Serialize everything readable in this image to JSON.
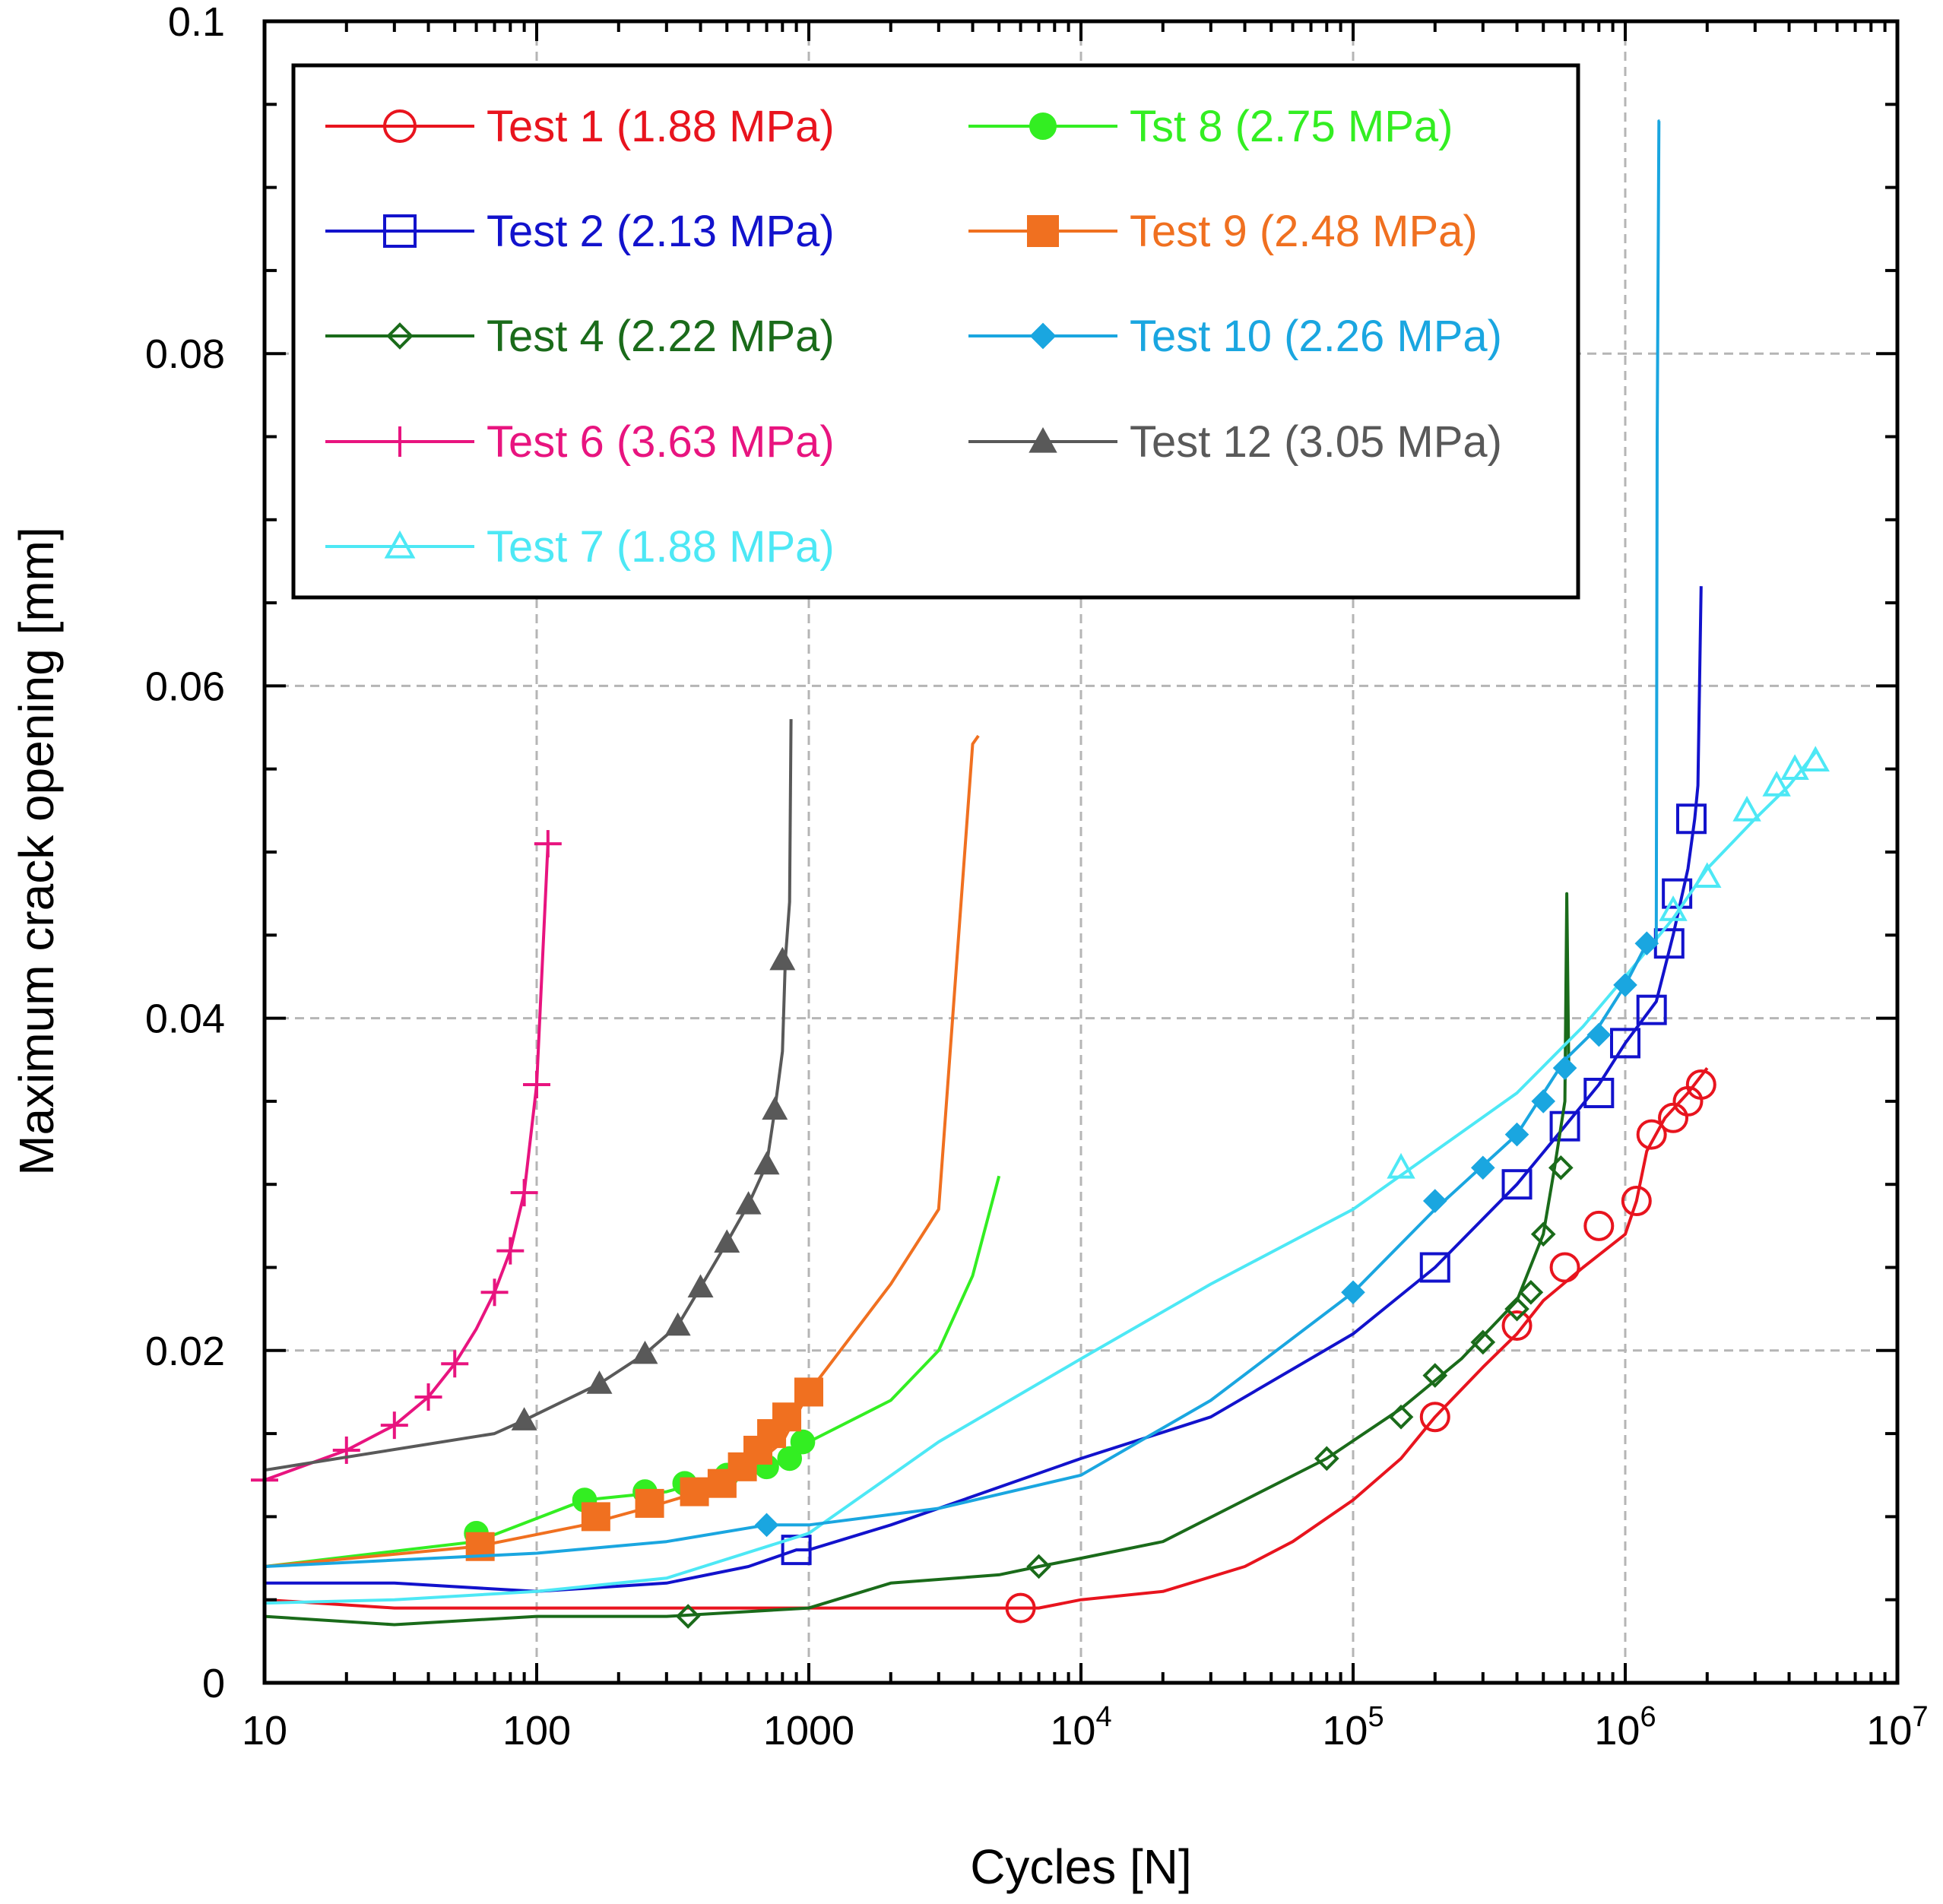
{
  "chart_data": {
    "type": "line",
    "xscale": "log",
    "xlim": [
      10,
      10000000
    ],
    "ylim": [
      0,
      0.1
    ],
    "xlabel": "Cycles [N]",
    "ylabel": "Maximum crack opening [mm]",
    "grid": true,
    "legend_position": "top-left",
    "x_ticks": [
      {
        "value": 10,
        "label": "10",
        "sup": ""
      },
      {
        "value": 100,
        "label": "100",
        "sup": ""
      },
      {
        "value": 1000,
        "label": "1000",
        "sup": ""
      },
      {
        "value": 10000,
        "label": "10",
        "sup": "4"
      },
      {
        "value": 100000,
        "label": "10",
        "sup": "5"
      },
      {
        "value": 1000000,
        "label": "10",
        "sup": "6"
      },
      {
        "value": 10000000,
        "label": "10",
        "sup": "7"
      }
    ],
    "y_ticks": [
      {
        "value": 0,
        "label": "0"
      },
      {
        "value": 0.02,
        "label": "0.02"
      },
      {
        "value": 0.04,
        "label": "0.04"
      },
      {
        "value": 0.06,
        "label": "0.06"
      },
      {
        "value": 0.08,
        "label": "0.08"
      },
      {
        "value": 0.1,
        "label": "0.1"
      }
    ],
    "series": [
      {
        "name": "Test 1 (1.88 MPa)",
        "color": "#e8141e",
        "marker": "circle-open",
        "x": [
          10,
          30,
          100,
          300,
          1000,
          3000,
          6000,
          7000,
          10000,
          20000,
          40000,
          60000,
          100000,
          150000,
          200000,
          300000,
          400000,
          500000,
          700000,
          1000000,
          1100000,
          1200000,
          1400000,
          1700000,
          2000000
        ],
        "y": [
          0.005,
          0.0045,
          0.0045,
          0.0045,
          0.0045,
          0.0045,
          0.0045,
          0.0045,
          0.005,
          0.0055,
          0.007,
          0.0085,
          0.011,
          0.0135,
          0.016,
          0.019,
          0.021,
          0.023,
          0.025,
          0.027,
          0.029,
          0.032,
          0.034,
          0.0355,
          0.037
        ],
        "markers_x": [
          6000,
          200000,
          400000,
          600000,
          800000,
          1100000,
          1250000,
          1500000,
          1700000,
          1900000
        ],
        "markers_y": [
          0.0045,
          0.016,
          0.0215,
          0.025,
          0.0275,
          0.029,
          0.033,
          0.034,
          0.035,
          0.036
        ]
      },
      {
        "name": "Test 2 (2.13 MPa)",
        "color": "#1212cc",
        "marker": "square-open",
        "x": [
          10,
          30,
          100,
          300,
          600,
          900,
          1000,
          2000,
          3000,
          10000,
          30000,
          100000,
          200000,
          400000,
          600000,
          800000,
          1000000,
          1300000,
          1500000,
          1700000,
          1800000,
          1850000,
          1900000
        ],
        "y": [
          0.006,
          0.006,
          0.0055,
          0.006,
          0.007,
          0.008,
          0.008,
          0.0095,
          0.0105,
          0.0135,
          0.016,
          0.021,
          0.025,
          0.03,
          0.0335,
          0.036,
          0.0385,
          0.041,
          0.045,
          0.049,
          0.052,
          0.054,
          0.066
        ],
        "markers_x": [
          900,
          200000,
          400000,
          600000,
          800000,
          1000000,
          1250000,
          1450000,
          1550000,
          1750000
        ],
        "markers_y": [
          0.008,
          0.025,
          0.03,
          0.0335,
          0.0355,
          0.0385,
          0.0405,
          0.0445,
          0.0475,
          0.052
        ]
      },
      {
        "name": "Test 4 (2.22 MPa)",
        "color": "#1a6b1a",
        "marker": "diamond-open",
        "x": [
          10,
          30,
          100,
          300,
          1000,
          2000,
          5000,
          7000,
          10000,
          20000,
          40000,
          80000,
          150000,
          250000,
          400000,
          500000,
          550000,
          600000,
          610000,
          620000
        ],
        "y": [
          0.004,
          0.0035,
          0.004,
          0.004,
          0.0045,
          0.006,
          0.0065,
          0.007,
          0.0075,
          0.0085,
          0.011,
          0.0135,
          0.0165,
          0.0195,
          0.023,
          0.027,
          0.031,
          0.035,
          0.0475,
          0.037
        ],
        "markers_x": [
          360,
          7000,
          80000,
          150000,
          200000,
          300000,
          400000,
          450000,
          500000,
          580000
        ],
        "markers_y": [
          0.004,
          0.007,
          0.0135,
          0.016,
          0.0185,
          0.0205,
          0.0225,
          0.0235,
          0.027,
          0.031
        ]
      },
      {
        "name": "Test 6 (3.63 MPa)",
        "color": "#e8147f",
        "marker": "plus",
        "x": [
          10,
          20,
          30,
          40,
          50,
          60,
          70,
          80,
          90,
          100,
          110
        ],
        "y": [
          0.0122,
          0.014,
          0.0155,
          0.0172,
          0.0192,
          0.0213,
          0.0235,
          0.026,
          0.0295,
          0.036,
          0.0505
        ],
        "markers_x": [
          10,
          20,
          30,
          40,
          50,
          70,
          80,
          90,
          100,
          110
        ],
        "markers_y": [
          0.0122,
          0.014,
          0.0155,
          0.0172,
          0.0192,
          0.0235,
          0.026,
          0.0295,
          0.036,
          0.0505
        ]
      },
      {
        "name": "Test 7 (1.88 MPa)",
        "color": "#4de8f5",
        "marker": "triangle-open",
        "x": [
          10,
          30,
          100,
          300,
          1000,
          3000,
          10000,
          30000,
          100000,
          200000,
          400000,
          700000,
          1000000,
          1500000,
          2000000,
          3000000,
          4000000,
          5000000
        ],
        "y": [
          0.0048,
          0.005,
          0.0055,
          0.0063,
          0.009,
          0.0145,
          0.0195,
          0.024,
          0.0285,
          0.032,
          0.0355,
          0.0395,
          0.0425,
          0.046,
          0.049,
          0.052,
          0.054,
          0.056
        ],
        "markers_x": [
          150000,
          1500000,
          2000000,
          2800000,
          3600000,
          4200000,
          5000000
        ],
        "markers_y": [
          0.031,
          0.0465,
          0.0485,
          0.0525,
          0.054,
          0.055,
          0.0555
        ]
      },
      {
        "name": "Tst 8 (2.75 MPa)",
        "color": "#33ee22",
        "marker": "circle-filled",
        "x": [
          10,
          60,
          150,
          300,
          500,
          700,
          900,
          1000,
          2000,
          3000,
          4000,
          5000
        ],
        "y": [
          0.007,
          0.0085,
          0.011,
          0.0115,
          0.0125,
          0.013,
          0.0135,
          0.0145,
          0.017,
          0.02,
          0.0245,
          0.0305
        ],
        "markers_x": [
          60,
          150,
          250,
          350,
          500,
          700,
          850,
          950
        ],
        "markers_y": [
          0.009,
          0.011,
          0.0115,
          0.012,
          0.0125,
          0.013,
          0.0135,
          0.0145
        ]
      },
      {
        "name": "Test 9 (2.48 MPa)",
        "color": "#f07020",
        "marker": "square-filled",
        "x": [
          10,
          60,
          150,
          250,
          400,
          600,
          800,
          1000,
          2000,
          3000,
          4000,
          4200
        ],
        "y": [
          0.007,
          0.0082,
          0.0095,
          0.0105,
          0.0115,
          0.0128,
          0.0145,
          0.0175,
          0.024,
          0.0285,
          0.0565,
          0.057
        ],
        "markers_x": [
          62,
          165,
          260,
          380,
          480,
          570,
          650,
          730,
          830,
          1000
        ],
        "markers_y": [
          0.0082,
          0.01,
          0.0108,
          0.0115,
          0.012,
          0.013,
          0.014,
          0.015,
          0.016,
          0.0175
        ]
      },
      {
        "name": "Test 10 (2.26 MPa)",
        "color": "#1aa6e0",
        "marker": "diamond-filled",
        "x": [
          10,
          100,
          300,
          700,
          1000,
          3000,
          10000,
          30000,
          100000,
          200000,
          400000,
          600000,
          800000,
          1000000,
          1200000,
          1300000,
          1310000,
          1330000,
          1340000
        ],
        "y": [
          0.007,
          0.0078,
          0.0085,
          0.0095,
          0.0095,
          0.0105,
          0.0125,
          0.017,
          0.0235,
          0.0285,
          0.033,
          0.0375,
          0.0395,
          0.042,
          0.0445,
          0.0445,
          0.075,
          0.094,
          0.094
        ],
        "markers_x": [
          700,
          100000,
          200000,
          300000,
          400000,
          500000,
          600000,
          800000,
          1000000,
          1200000
        ],
        "markers_y": [
          0.0095,
          0.0235,
          0.029,
          0.031,
          0.033,
          0.035,
          0.037,
          0.039,
          0.042,
          0.0445
        ]
      },
      {
        "name": "Test 12 (3.05 MPa)",
        "color": "#595959",
        "marker": "triangle-filled",
        "x": [
          10,
          70,
          90,
          120,
          170,
          250,
          330,
          400,
          500,
          600,
          700,
          750,
          800,
          820,
          850,
          860
        ],
        "y": [
          0.0128,
          0.015,
          0.0158,
          0.0168,
          0.018,
          0.0198,
          0.0215,
          0.0238,
          0.0265,
          0.0288,
          0.0312,
          0.0345,
          0.038,
          0.0435,
          0.047,
          0.058
        ],
        "markers_x": [
          90,
          170,
          250,
          330,
          400,
          500,
          600,
          700,
          750,
          800
        ],
        "markers_y": [
          0.0158,
          0.018,
          0.0198,
          0.0215,
          0.0238,
          0.0265,
          0.0288,
          0.0312,
          0.0345,
          0.0435
        ]
      }
    ]
  }
}
